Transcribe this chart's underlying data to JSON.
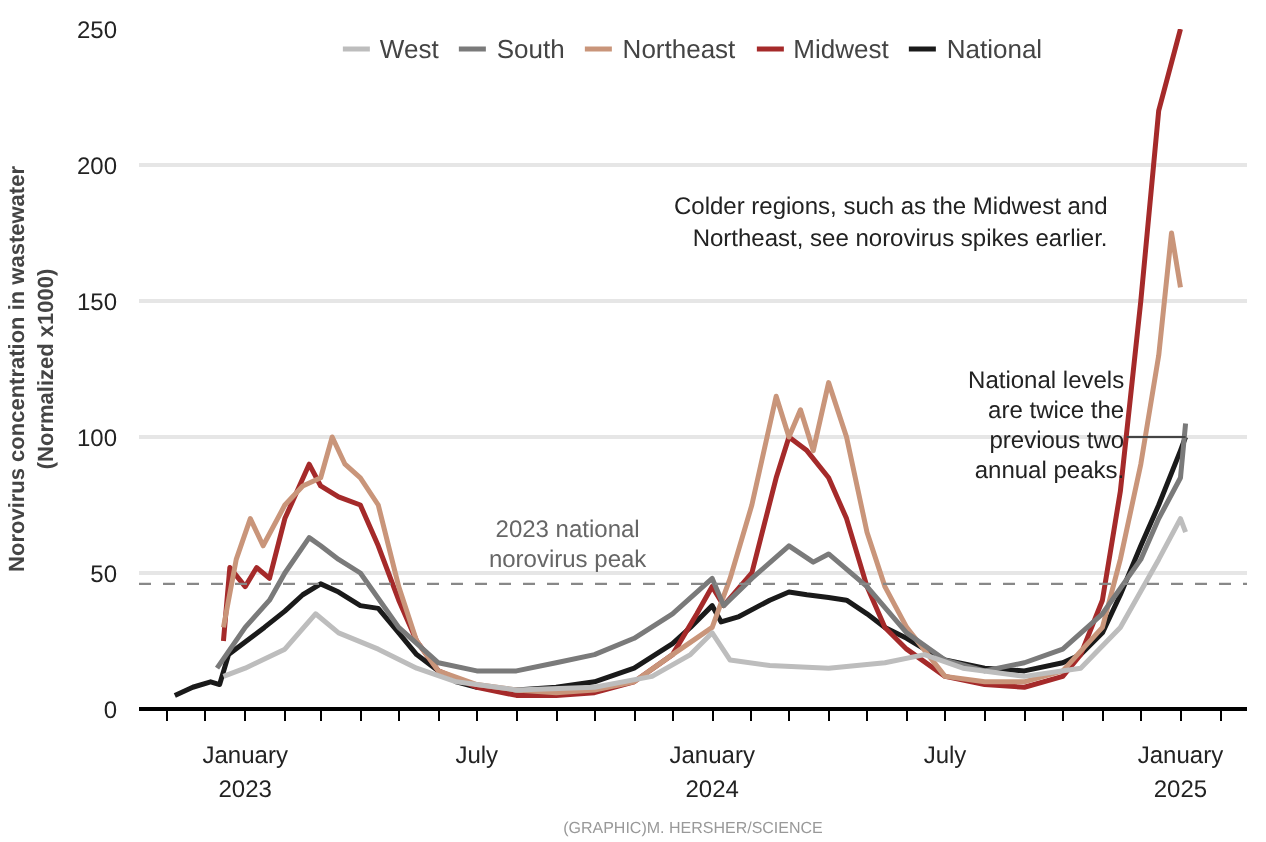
{
  "chart_data": {
    "type": "line",
    "ylabel": "Norovirus concentration in wastewater\n(Normalized x1000)",
    "xlim": [
      "2022-10-10",
      "2025-02-22"
    ],
    "ylim": [
      0,
      250
    ],
    "yticks": [
      0,
      50,
      100,
      150,
      200,
      250
    ],
    "xticks": [
      {
        "value": "2022-11-01",
        "label": null
      },
      {
        "value": "2022-12-01",
        "label": null
      },
      {
        "value": "2023-01-01",
        "label": "January\n2023"
      },
      {
        "value": "2023-02-01",
        "label": null
      },
      {
        "value": "2023-03-01",
        "label": null
      },
      {
        "value": "2023-04-01",
        "label": null
      },
      {
        "value": "2023-05-01",
        "label": null
      },
      {
        "value": "2023-06-01",
        "label": null
      },
      {
        "value": "2023-07-01",
        "label": "July"
      },
      {
        "value": "2023-08-01",
        "label": null
      },
      {
        "value": "2023-09-01",
        "label": null
      },
      {
        "value": "2023-10-01",
        "label": null
      },
      {
        "value": "2023-11-01",
        "label": null
      },
      {
        "value": "2023-12-01",
        "label": null
      },
      {
        "value": "2024-01-01",
        "label": "January\n2024"
      },
      {
        "value": "2024-02-01",
        "label": null
      },
      {
        "value": "2024-03-01",
        "label": null
      },
      {
        "value": "2024-04-01",
        "label": null
      },
      {
        "value": "2024-05-01",
        "label": null
      },
      {
        "value": "2024-06-01",
        "label": null
      },
      {
        "value": "2024-07-01",
        "label": "July"
      },
      {
        "value": "2024-08-01",
        "label": null
      },
      {
        "value": "2024-09-01",
        "label": null
      },
      {
        "value": "2024-10-01",
        "label": null
      },
      {
        "value": "2024-11-01",
        "label": null
      },
      {
        "value": "2024-12-01",
        "label": null
      },
      {
        "value": "2025-01-01",
        "label": "January\n2025"
      },
      {
        "value": "2025-02-01",
        "label": null
      }
    ],
    "grid": "y",
    "legend": "top",
    "marker": "none",
    "line_style": "solid",
    "series": [
      {
        "name": "West",
        "color": "#bdbdbd",
        "x": [
          "2022-12-15",
          "2023-01-01",
          "2023-02-01",
          "2023-02-25",
          "2023-03-15",
          "2023-04-15",
          "2023-05-15",
          "2023-06-15",
          "2023-08-01",
          "2023-10-01",
          "2023-11-15",
          "2023-12-15",
          "2024-01-01",
          "2024-01-15",
          "2024-02-15",
          "2024-04-01",
          "2024-05-15",
          "2024-06-15",
          "2024-07-15",
          "2024-09-01",
          "2024-10-15",
          "2024-11-15",
          "2024-12-15",
          "2025-01-01",
          "2025-01-05"
        ],
        "values": [
          12,
          15,
          22,
          35,
          28,
          22,
          15,
          10,
          7,
          8,
          12,
          20,
          28,
          18,
          16,
          15,
          17,
          20,
          15,
          12,
          15,
          30,
          55,
          70,
          65
        ]
      },
      {
        "name": "South",
        "color": "#7a7a7a",
        "x": [
          "2022-12-10",
          "2023-01-01",
          "2023-01-20",
          "2023-02-01",
          "2023-02-20",
          "2023-03-01",
          "2023-03-15",
          "2023-04-01",
          "2023-05-01",
          "2023-06-01",
          "2023-07-01",
          "2023-08-01",
          "2023-09-01",
          "2023-10-01",
          "2023-11-01",
          "2023-12-01",
          "2024-01-01",
          "2024-01-10",
          "2024-02-01",
          "2024-03-01",
          "2024-03-20",
          "2024-04-01",
          "2024-05-01",
          "2024-06-01",
          "2024-07-01",
          "2024-08-01",
          "2024-09-01",
          "2024-10-01",
          "2024-11-01",
          "2024-12-01",
          "2024-12-15",
          "2025-01-01",
          "2025-01-05"
        ],
        "values": [
          15,
          30,
          40,
          50,
          63,
          60,
          55,
          50,
          30,
          17,
          14,
          14,
          17,
          20,
          26,
          35,
          48,
          38,
          48,
          60,
          54,
          57,
          45,
          28,
          18,
          14,
          17,
          22,
          35,
          55,
          70,
          85,
          105
        ]
      },
      {
        "name": "Northeast",
        "color": "#c9957a",
        "x": [
          "2022-12-15",
          "2022-12-25",
          "2023-01-05",
          "2023-01-15",
          "2023-02-01",
          "2023-02-15",
          "2023-03-01",
          "2023-03-10",
          "2023-03-20",
          "2023-04-01",
          "2023-04-15",
          "2023-05-01",
          "2023-05-15",
          "2023-06-01",
          "2023-07-01",
          "2023-08-01",
          "2023-09-01",
          "2023-10-01",
          "2023-11-01",
          "2023-12-01",
          "2024-01-01",
          "2024-01-15",
          "2024-02-01",
          "2024-02-20",
          "2024-03-01",
          "2024-03-10",
          "2024-03-20",
          "2024-04-01",
          "2024-04-15",
          "2024-05-01",
          "2024-05-15",
          "2024-06-01",
          "2024-07-01",
          "2024-08-01",
          "2024-09-01",
          "2024-10-01",
          "2024-11-01",
          "2024-11-15",
          "2024-12-01",
          "2024-12-15",
          "2024-12-25",
          "2025-01-01"
        ],
        "values": [
          30,
          55,
          70,
          60,
          75,
          82,
          85,
          100,
          90,
          85,
          75,
          45,
          25,
          14,
          9,
          7,
          6,
          7,
          10,
          20,
          30,
          48,
          75,
          115,
          100,
          110,
          95,
          120,
          100,
          65,
          45,
          30,
          12,
          10,
          10,
          14,
          30,
          55,
          90,
          130,
          175,
          155
        ]
      },
      {
        "name": "Midwest",
        "color": "#a52a2a",
        "x": [
          "2022-12-15",
          "2022-12-20",
          "2023-01-01",
          "2023-01-10",
          "2023-01-20",
          "2023-02-01",
          "2023-02-20",
          "2023-03-01",
          "2023-03-15",
          "2023-04-01",
          "2023-04-15",
          "2023-05-01",
          "2023-05-15",
          "2023-06-01",
          "2023-07-01",
          "2023-08-01",
          "2023-09-01",
          "2023-10-01",
          "2023-11-01",
          "2023-12-01",
          "2023-12-20",
          "2024-01-01",
          "2024-01-10",
          "2024-02-01",
          "2024-02-20",
          "2024-03-01",
          "2024-03-15",
          "2024-04-01",
          "2024-04-15",
          "2024-05-01",
          "2024-05-15",
          "2024-06-01",
          "2024-07-01",
          "2024-08-01",
          "2024-09-01",
          "2024-10-01",
          "2024-10-15",
          "2024-11-01",
          "2024-11-15",
          "2024-12-01",
          "2024-12-15",
          "2025-01-01"
        ],
        "values": [
          25,
          52,
          45,
          52,
          48,
          70,
          90,
          82,
          78,
          75,
          60,
          40,
          25,
          14,
          8,
          5,
          5,
          6,
          10,
          20,
          35,
          45,
          38,
          50,
          85,
          100,
          95,
          85,
          70,
          45,
          30,
          22,
          12,
          9,
          8,
          12,
          20,
          40,
          80,
          150,
          220,
          250
        ]
      },
      {
        "name": "National",
        "color": "#1a1a1a",
        "x": [
          "2022-11-07",
          "2022-11-21",
          "2022-12-05",
          "2022-12-12",
          "2022-12-19",
          "2023-01-02",
          "2023-01-16",
          "2023-02-01",
          "2023-02-15",
          "2023-03-01",
          "2023-03-15",
          "2023-04-01",
          "2023-04-15",
          "2023-05-01",
          "2023-05-15",
          "2023-06-01",
          "2023-06-15",
          "2023-07-01",
          "2023-08-01",
          "2023-09-01",
          "2023-10-01",
          "2023-11-01",
          "2023-12-01",
          "2023-12-15",
          "2024-01-01",
          "2024-01-08",
          "2024-01-22",
          "2024-02-15",
          "2024-03-01",
          "2024-03-15",
          "2024-04-01",
          "2024-04-15",
          "2024-05-01",
          "2024-05-15",
          "2024-06-01",
          "2024-06-15",
          "2024-07-01",
          "2024-08-01",
          "2024-09-01",
          "2024-10-01",
          "2024-10-15",
          "2024-11-01",
          "2024-11-15",
          "2024-12-01",
          "2024-12-15",
          "2025-01-01",
          "2025-01-05"
        ],
        "values": [
          5,
          8,
          10,
          9,
          20,
          25,
          30,
          36,
          42,
          46,
          43,
          38,
          37,
          28,
          20,
          14,
          10,
          8,
          7,
          8,
          10,
          15,
          24,
          30,
          38,
          32,
          34,
          40,
          43,
          42,
          41,
          40,
          35,
          30,
          26,
          22,
          18,
          15,
          14,
          17,
          20,
          28,
          42,
          60,
          75,
          95,
          100
        ]
      }
    ],
    "ref_lines": [
      {
        "axis": "y",
        "value": 46,
        "label": "2023 national\nnorovirus peak",
        "color": "#888888",
        "line_style": "dashed"
      }
    ],
    "annotations": [
      "Colder regions, such as the Midwest and\nNortheast, see norovirus spikes earlier.",
      {
        "text": "National levels\nare twice the\nprevious two\nannual peaks.",
        "x": "2025-01-05",
        "y": 100
      },
      "(GRAPHIC)M. HERSHER/SCIENCE"
    ]
  }
}
